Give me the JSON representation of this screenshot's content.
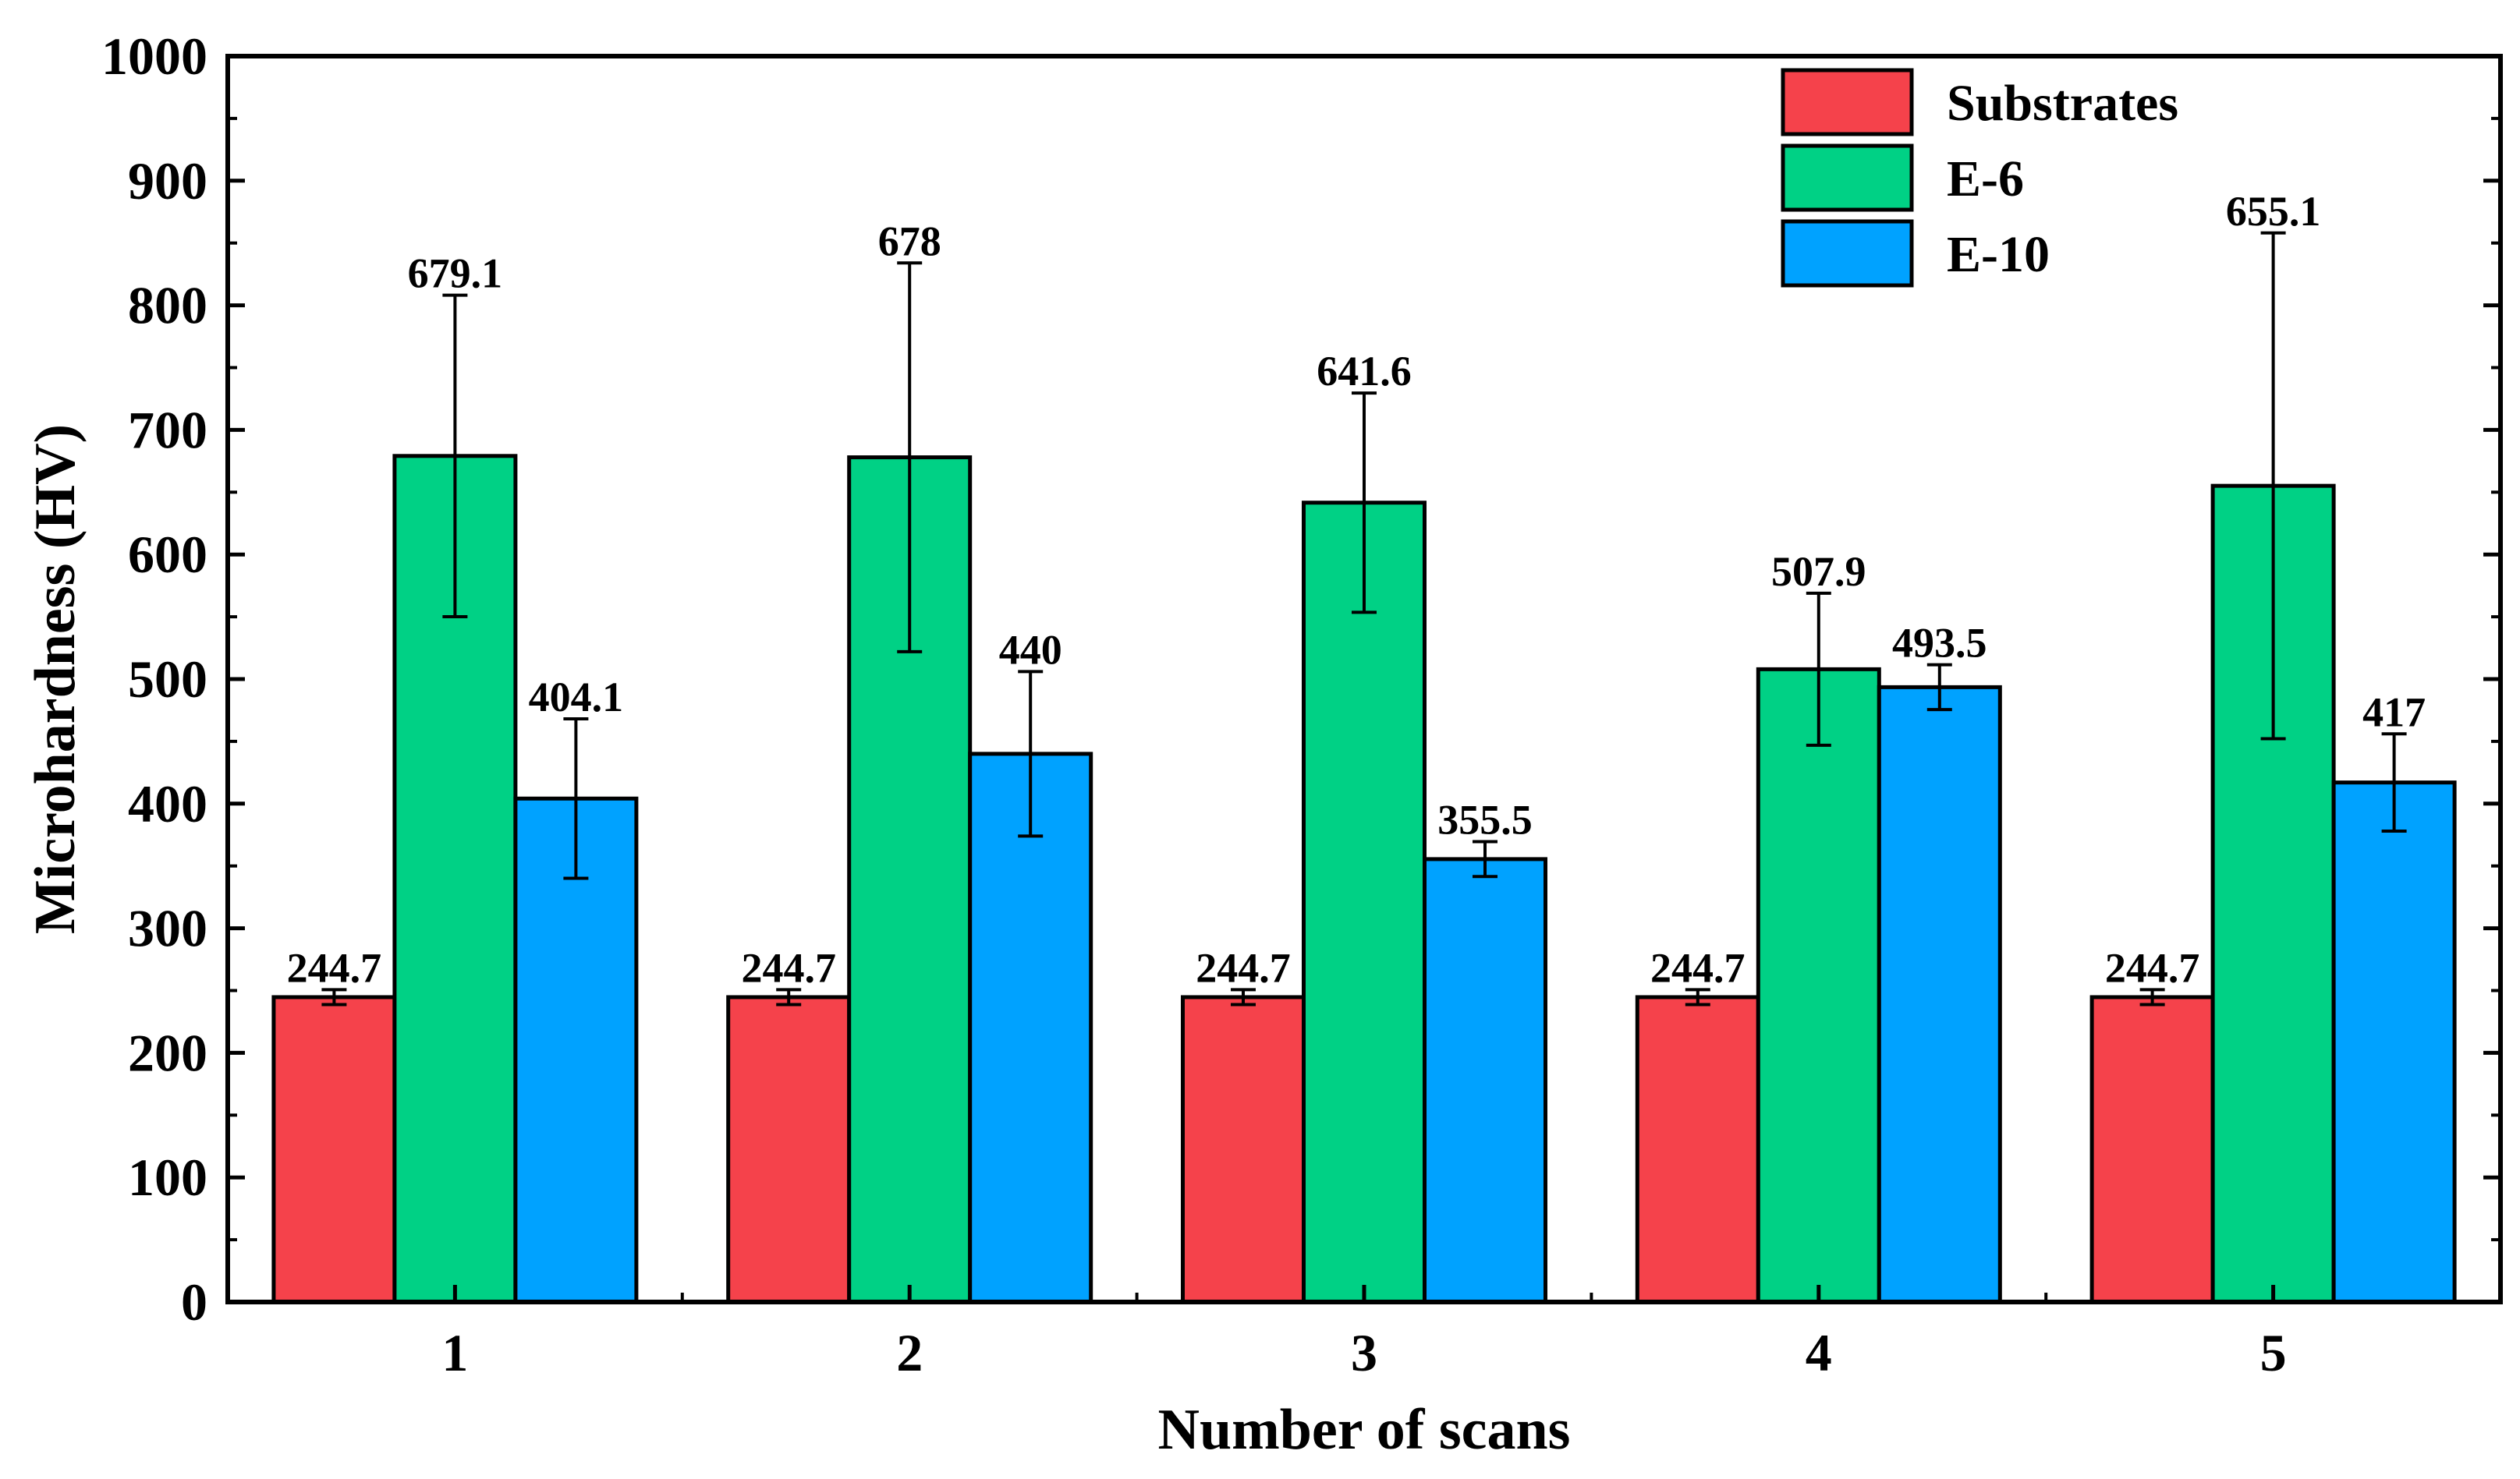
{
  "chart_data": {
    "type": "bar",
    "xlabel": "Number of scans",
    "ylabel": "Microhardness (HV)",
    "categories": [
      "1",
      "2",
      "3",
      "4",
      "5"
    ],
    "ylim": [
      0,
      1000
    ],
    "yticks": [
      0,
      100,
      200,
      300,
      400,
      500,
      600,
      700,
      800,
      900,
      1000
    ],
    "grid": false,
    "legend_position": "top-right",
    "series": [
      {
        "name": "Substrates",
        "color": "#f5424b",
        "values": [
          244.7,
          244.7,
          244.7,
          244.7,
          244.7
        ],
        "error": [
          6,
          6,
          6,
          6,
          6
        ],
        "labels": [
          "244.7",
          "244.7",
          "244.7",
          "244.7",
          "244.7"
        ]
      },
      {
        "name": "E-6",
        "color": "#00d185",
        "values": [
          679.1,
          678,
          641.6,
          507.9,
          655.1
        ],
        "error": [
          129,
          156,
          88,
          61,
          203
        ],
        "labels": [
          "679.1",
          "678",
          "641.6",
          "507.9",
          "655.1"
        ]
      },
      {
        "name": "E-10",
        "color": "#00a2ff",
        "values": [
          404.1,
          440,
          355.5,
          493.5,
          417
        ],
        "error": [
          64,
          66,
          14,
          18,
          39
        ],
        "labels": [
          "404.1",
          "440",
          "355.5",
          "493.5",
          "417"
        ]
      }
    ]
  }
}
